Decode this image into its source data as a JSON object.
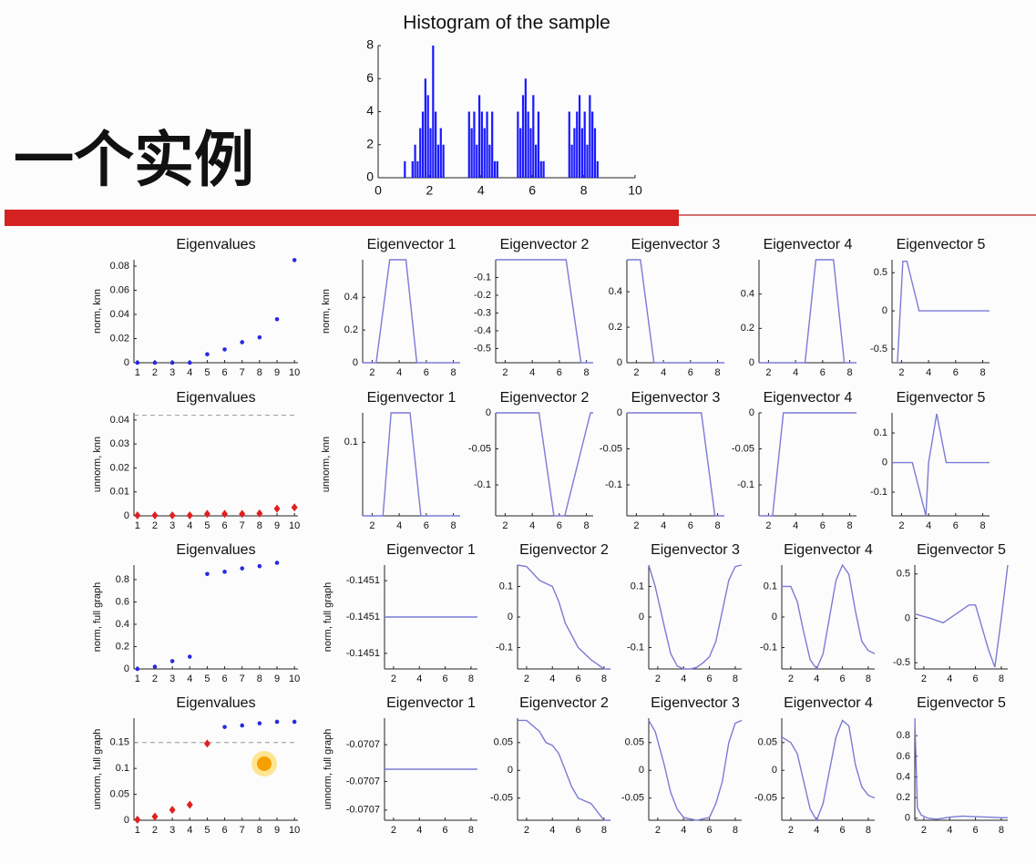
{
  "slide_title": "一个实例",
  "chart_data": [
    {
      "type": "histogram",
      "title": "Histogram of the sample",
      "color": "#1a1aff",
      "bins": [
        1,
        1.1,
        1.2,
        1.3,
        1.4,
        1.5,
        1.6,
        1.7,
        1.8,
        1.9,
        2,
        2.1,
        2.2,
        2.3,
        2.4,
        2.5,
        2.6,
        2.7,
        2.8,
        2.9,
        3,
        3.1,
        3.2,
        3.3,
        3.4,
        3.5,
        3.6,
        3.7,
        3.8,
        3.9,
        4,
        4.1,
        4.2,
        4.3,
        4.4,
        4.5,
        4.6,
        4.7,
        4.8,
        4.9,
        5,
        5.1,
        5.2,
        5.3,
        5.4,
        5.5,
        5.6,
        5.7,
        5.8,
        5.9,
        6,
        6.1,
        6.2,
        6.3,
        6.4,
        6.5,
        6.6,
        6.7,
        6.8,
        6.9,
        7,
        7.1,
        7.2,
        7.3,
        7.4,
        7.5,
        7.6,
        7.7,
        7.8,
        7.9,
        8,
        8.1,
        8.2,
        8.3,
        8.4,
        8.5,
        8.6,
        8.7,
        8.8,
        8.9,
        9
      ],
      "values": [
        1,
        0,
        0,
        1,
        2,
        1,
        3,
        4,
        6,
        5,
        3,
        8,
        4,
        2,
        3,
        2,
        0,
        0,
        0,
        0,
        0,
        0,
        0,
        0,
        0,
        4,
        3,
        4,
        2,
        5,
        4,
        3,
        4,
        2,
        4,
        1,
        1,
        0,
        0,
        0,
        0,
        0,
        0,
        0,
        4,
        3,
        5,
        6,
        4,
        3,
        5,
        2,
        4,
        1,
        1,
        0,
        0,
        0,
        0,
        0,
        0,
        0,
        0,
        0,
        4,
        2,
        3,
        4,
        5,
        3,
        4,
        2,
        5,
        4,
        3,
        1,
        0,
        0,
        0,
        0
      ],
      "xlim": [
        0,
        10
      ],
      "ylim": [
        0,
        8
      ],
      "xticks": [
        0,
        2,
        4,
        6,
        8,
        10
      ],
      "yticks": [
        0,
        2,
        4,
        6,
        8
      ]
    },
    {
      "type": "scatter",
      "title": "Eigenvalues",
      "ylabel": "norm, knn",
      "xlim": [
        0.8,
        10.2
      ],
      "ylim": [
        0,
        0.0853
      ],
      "xticks": [
        1,
        2,
        3,
        4,
        5,
        6,
        7,
        8,
        9,
        10
      ],
      "yticks": [
        0,
        0.02,
        0.04,
        0.06,
        0.08
      ],
      "series": [
        {
          "color": "#2a2ae0",
          "marker": "dot",
          "x": [
            1,
            2,
            3,
            4,
            5,
            6,
            7,
            8,
            9,
            10
          ],
          "values": [
            0,
            0,
            0,
            0,
            0.007,
            0.011,
            0.017,
            0.021,
            0.036,
            0.085
          ]
        }
      ]
    },
    {
      "type": "line",
      "title": "Eigenvector 1",
      "ylabel": "norm, knn",
      "color": "#7b7bd6",
      "xlim": [
        1.3,
        8.5
      ],
      "ylim": [
        0,
        0.63
      ],
      "xticks": [
        2,
        4,
        6,
        8
      ],
      "yticks": [
        0,
        0.2,
        0.4
      ],
      "x": [
        1.3,
        2.3,
        3.3,
        4.5,
        5.3,
        8.5
      ],
      "values": [
        0,
        0,
        0.63,
        0.63,
        0,
        0
      ]
    },
    {
      "type": "line",
      "title": "Eigenvector 2",
      "color": "#7b7bd6",
      "xlim": [
        1.3,
        8.5
      ],
      "ylim": [
        -0.58,
        0
      ],
      "xticks": [
        2,
        4,
        6,
        8
      ],
      "yticks": [
        -0.5,
        -0.4,
        -0.3,
        -0.2,
        -0.1
      ],
      "x": [
        1.3,
        6.5,
        7.6,
        8.5
      ],
      "values": [
        0,
        0,
        -0.58,
        -0.58
      ]
    },
    {
      "type": "line",
      "title": "Eigenvector 3",
      "color": "#7b7bd6",
      "xlim": [
        1.3,
        8.5
      ],
      "ylim": [
        0,
        0.58
      ],
      "xticks": [
        2,
        4,
        6,
        8
      ],
      "yticks": [
        0,
        0.2,
        0.4
      ],
      "x": [
        1.3,
        2.3,
        3.3,
        8.5
      ],
      "values": [
        0.58,
        0.58,
        0,
        0
      ]
    },
    {
      "type": "line",
      "title": "Eigenvector 4",
      "color": "#7b7bd6",
      "xlim": [
        1.3,
        8.5
      ],
      "ylim": [
        0,
        0.6
      ],
      "xticks": [
        2,
        4,
        6,
        8
      ],
      "yticks": [
        0,
        0.2,
        0.4
      ],
      "x": [
        1.3,
        4.7,
        5.5,
        6.8,
        7.6,
        8.5
      ],
      "values": [
        0,
        0,
        0.6,
        0.6,
        0,
        0
      ]
    },
    {
      "type": "line",
      "title": "Eigenvector 5",
      "color": "#7b7bd6",
      "xlim": [
        1.3,
        8.5
      ],
      "ylim": [
        -0.68,
        0.67
      ],
      "xticks": [
        2,
        4,
        6,
        8
      ],
      "yticks": [
        -0.5,
        0,
        0.5
      ],
      "x": [
        1.7,
        2.1,
        2.4,
        3.3,
        8.5
      ],
      "values": [
        -0.68,
        0.65,
        0.65,
        0,
        0
      ]
    },
    {
      "type": "scatter",
      "title": "Eigenvalues",
      "ylabel": "unnorm, knn",
      "xlim": [
        0.8,
        10.2
      ],
      "ylim": [
        0,
        0.043
      ],
      "xticks": [
        1,
        2,
        3,
        4,
        5,
        6,
        7,
        8,
        9,
        10
      ],
      "yticks": [
        0,
        0.01,
        0.02,
        0.03,
        0.04
      ],
      "reference_line": 0.042,
      "series": [
        {
          "color": "#e02020",
          "marker": "diamond",
          "x": [
            1,
            2,
            3,
            4,
            5,
            6,
            7,
            8,
            9,
            10
          ],
          "values": [
            0.0002,
            0.0002,
            0.0002,
            0.0002,
            0.0008,
            0.0008,
            0.0008,
            0.001,
            0.003,
            0.0035
          ]
        }
      ]
    },
    {
      "type": "line",
      "title": "Eigenvector 1",
      "ylabel": "unnorm, knn",
      "color": "#7b7bd6",
      "xlim": [
        1.3,
        8.5
      ],
      "ylim": [
        0,
        0.14
      ],
      "xticks": [
        2,
        4,
        6,
        8
      ],
      "yticks": [
        0.1
      ],
      "x": [
        1.3,
        2.8,
        3.4,
        4.8,
        5.6,
        8.5
      ],
      "values": [
        0,
        0,
        0.14,
        0.14,
        0,
        0
      ]
    },
    {
      "type": "line",
      "title": "Eigenvector 2",
      "color": "#7b7bd6",
      "xlim": [
        1.3,
        8.5
      ],
      "ylim": [
        -0.143,
        0
      ],
      "xticks": [
        2,
        4,
        6,
        8
      ],
      "yticks": [
        -0.1,
        -0.05,
        0
      ],
      "x": [
        1.3,
        4.5,
        5.6,
        6.4,
        8.3,
        8.5
      ],
      "values": [
        0,
        0,
        -0.143,
        -0.143,
        0,
        0
      ]
    },
    {
      "type": "line",
      "title": "Eigenvector 3",
      "color": "#7b7bd6",
      "xlim": [
        1.3,
        8.5
      ],
      "ylim": [
        -0.143,
        0
      ],
      "xticks": [
        2,
        4,
        6,
        8
      ],
      "yticks": [
        -0.1,
        -0.05,
        0
      ],
      "x": [
        1.3,
        6.8,
        7.8,
        8.5
      ],
      "values": [
        0,
        0,
        -0.143,
        -0.143
      ]
    },
    {
      "type": "line",
      "title": "Eigenvector 4",
      "color": "#7b7bd6",
      "xlim": [
        1.3,
        8.5
      ],
      "ylim": [
        -0.143,
        0
      ],
      "xticks": [
        2,
        4,
        6,
        8
      ],
      "yticks": [
        -0.1,
        -0.05,
        0
      ],
      "x": [
        1.3,
        2.3,
        3.1,
        8.5
      ],
      "values": [
        -0.143,
        -0.143,
        0,
        0
      ]
    },
    {
      "type": "line",
      "title": "Eigenvector 5",
      "color": "#7b7bd6",
      "xlim": [
        1.3,
        8.5
      ],
      "ylim": [
        -0.18,
        0.168
      ],
      "xticks": [
        2,
        4,
        6,
        8
      ],
      "yticks": [
        -0.1,
        0,
        0.1
      ],
      "x": [
        1.3,
        2.8,
        3.8,
        4.0,
        4.6,
        5.3,
        8.5
      ],
      "values": [
        0,
        0,
        -0.18,
        0,
        0.165,
        0,
        0
      ]
    },
    {
      "type": "scatter",
      "title": "Eigenvalues",
      "ylabel": "norm, full graph",
      "xlim": [
        0.8,
        10.2
      ],
      "ylim": [
        0,
        0.93
      ],
      "xticks": [
        1,
        2,
        3,
        4,
        5,
        6,
        7,
        8,
        9,
        10
      ],
      "yticks": [
        0,
        0.2,
        0.4,
        0.6,
        0.8
      ],
      "series": [
        {
          "color": "#2a2ae0",
          "marker": "dot",
          "x": [
            1,
            2,
            3,
            4,
            5,
            6,
            7,
            8,
            9
          ],
          "values": [
            0,
            0.02,
            0.07,
            0.11,
            0.85,
            0.87,
            0.9,
            0.92,
            0.95
          ]
        }
      ]
    },
    {
      "type": "line",
      "title": "Eigenvector 1",
      "ylabel": "norm, full graph",
      "color": "#7b7bd6",
      "xlim": [
        1.3,
        8.5
      ],
      "ylim": [
        -0.14512,
        -0.14508
      ],
      "xticks": [
        2,
        4,
        6,
        8
      ],
      "yticks": [
        {
          "value": -0.145114,
          "label": "-0.1451"
        },
        -0.1451,
        {
          "value": -0.145086,
          "label": "-0.1451"
        }
      ],
      "x": [
        1.3,
        8.5
      ],
      "values": [
        -0.1451,
        -0.1451
      ]
    },
    {
      "type": "line",
      "title": "Eigenvector 2",
      "color": "#7b7bd6",
      "xlim": [
        1.3,
        8.5
      ],
      "ylim": [
        -0.17,
        0.17
      ],
      "xticks": [
        2,
        4,
        6,
        8
      ],
      "yticks": [
        -0.1,
        0,
        0.1
      ],
      "x": [
        1.3,
        2,
        3,
        4,
        4.5,
        5,
        6,
        7,
        8,
        8.5
      ],
      "values": [
        0.17,
        0.165,
        0.12,
        0.1,
        0.05,
        -0.02,
        -0.1,
        -0.14,
        -0.17,
        -0.17
      ]
    },
    {
      "type": "line",
      "title": "Eigenvector 3",
      "color": "#7b7bd6",
      "xlim": [
        1.3,
        8.5
      ],
      "ylim": [
        -0.17,
        0.17
      ],
      "xticks": [
        2,
        4,
        6,
        8
      ],
      "yticks": [
        -0.1,
        0,
        0.1
      ],
      "x": [
        1.3,
        1.8,
        2.5,
        3,
        3.5,
        4,
        4.5,
        5,
        5.5,
        6,
        6.5,
        7,
        7.5,
        8,
        8.5
      ],
      "values": [
        0.17,
        0.1,
        -0.03,
        -0.12,
        -0.16,
        -0.17,
        -0.17,
        -0.165,
        -0.15,
        -0.13,
        -0.08,
        0.02,
        0.12,
        0.165,
        0.17
      ]
    },
    {
      "type": "line",
      "title": "Eigenvector 4",
      "color": "#7b7bd6",
      "xlim": [
        1.3,
        8.5
      ],
      "ylim": [
        -0.17,
        0.17
      ],
      "xticks": [
        2,
        4,
        6,
        8
      ],
      "yticks": [
        -0.1,
        0,
        0.1
      ],
      "x": [
        1.3,
        2,
        2.5,
        3,
        3.5,
        4,
        4.5,
        5,
        5.5,
        6,
        6.5,
        7,
        7.5,
        8,
        8.5
      ],
      "values": [
        0.1,
        0.1,
        0.05,
        -0.05,
        -0.14,
        -0.17,
        -0.12,
        0,
        0.12,
        0.17,
        0.14,
        0.02,
        -0.08,
        -0.11,
        -0.12
      ]
    },
    {
      "type": "line",
      "title": "Eigenvector 5",
      "color": "#7b7bd6",
      "xlim": [
        1.3,
        8.5
      ],
      "ylim": [
        -0.57,
        0.6
      ],
      "xticks": [
        2,
        4,
        6,
        8
      ],
      "yticks": [
        -0.5,
        0,
        0.5
      ],
      "x": [
        1.3,
        2.5,
        3.5,
        4.5,
        5.5,
        6,
        6.5,
        7,
        7.5,
        8,
        8.5
      ],
      "values": [
        0.05,
        0,
        -0.05,
        0.05,
        0.15,
        0.15,
        -0.1,
        -0.35,
        -0.55,
        0,
        0.6
      ]
    },
    {
      "type": "scatter",
      "title": "Eigenvalues",
      "ylabel": "unnorm, full graph",
      "xlim": [
        0.8,
        10.2
      ],
      "ylim": [
        0,
        0.197
      ],
      "xticks": [
        1,
        2,
        3,
        4,
        5,
        6,
        7,
        8,
        9,
        10
      ],
      "yticks": [
        0,
        0.05,
        0.1,
        0.15
      ],
      "reference_line": 0.15,
      "series": [
        {
          "color": "#e02020",
          "marker": "diamond",
          "x": [
            1,
            2,
            3,
            4,
            5
          ],
          "values": [
            0.001,
            0.007,
            0.02,
            0.03,
            0.148
          ]
        },
        {
          "color": "#2a2ae0",
          "marker": "dot",
          "x": [
            6,
            7,
            8,
            9,
            10
          ],
          "values": [
            0.18,
            0.183,
            0.187,
            0.19,
            0.19
          ]
        }
      ]
    },
    {
      "type": "line",
      "title": "Eigenvector 1",
      "ylabel": "unnorm, full graph",
      "color": "#7b7bd6",
      "xlim": [
        1.3,
        8.5
      ],
      "ylim": [
        -0.07072,
        -0.07068
      ],
      "xticks": [
        2,
        4,
        6,
        8
      ],
      "yticks": [
        {
          "value": -0.070716,
          "label": "-0.0707"
        },
        {
          "value": -0.0707048,
          "label": "-0.0707"
        },
        {
          "value": -0.0706904,
          "label": "-0.0707"
        }
      ],
      "x": [
        1.3,
        8.5
      ],
      "values": [
        -0.0707,
        -0.0707
      ]
    },
    {
      "type": "line",
      "title": "Eigenvector 2",
      "color": "#7b7bd6",
      "xlim": [
        1.3,
        8.5
      ],
      "ylim": [
        -0.09,
        0.094
      ],
      "xticks": [
        2,
        4,
        6,
        8
      ],
      "yticks": [
        -0.05,
        0,
        0.05
      ],
      "x": [
        1.3,
        2,
        3,
        3.5,
        4,
        4.5,
        5,
        5.5,
        6,
        7,
        8,
        8.5
      ],
      "values": [
        0.09,
        0.09,
        0.07,
        0.05,
        0.045,
        0.03,
        0,
        -0.03,
        -0.05,
        -0.06,
        -0.09,
        -0.09
      ]
    },
    {
      "type": "line",
      "title": "Eigenvector 3",
      "color": "#7b7bd6",
      "xlim": [
        1.3,
        8.5
      ],
      "ylim": [
        -0.09,
        0.094
      ],
      "xticks": [
        2,
        4,
        6,
        8
      ],
      "yticks": [
        -0.05,
        0,
        0.05
      ],
      "x": [
        1.3,
        1.8,
        2.5,
        3,
        3.5,
        4,
        5,
        6,
        6.5,
        7,
        7.5,
        8,
        8.5
      ],
      "values": [
        0.09,
        0.07,
        0.01,
        -0.04,
        -0.07,
        -0.085,
        -0.09,
        -0.085,
        -0.06,
        -0.02,
        0.05,
        0.085,
        0.09
      ]
    },
    {
      "type": "line",
      "title": "Eigenvector 4",
      "color": "#7b7bd6",
      "xlim": [
        1.3,
        8.5
      ],
      "ylim": [
        -0.09,
        0.094
      ],
      "xticks": [
        2,
        4,
        6,
        8
      ],
      "yticks": [
        -0.05,
        0,
        0.05
      ],
      "x": [
        1.3,
        2,
        2.5,
        3,
        3.5,
        4,
        4.5,
        5,
        5.5,
        6,
        6.5,
        7,
        7.5,
        8,
        8.5
      ],
      "values": [
        0.06,
        0.05,
        0.03,
        -0.02,
        -0.07,
        -0.09,
        -0.06,
        0,
        0.06,
        0.09,
        0.08,
        0.01,
        -0.03,
        -0.045,
        -0.05
      ]
    },
    {
      "type": "line",
      "title": "Eigenvector 5",
      "color": "#7b7bd6",
      "xlim": [
        1.3,
        8.5
      ],
      "ylim": [
        -0.02,
        0.97
      ],
      "xticks": [
        2,
        4,
        6,
        8
      ],
      "yticks": [
        0,
        0.2,
        0.4,
        0.6,
        0.8
      ],
      "x": [
        1.3,
        1.5,
        1.8,
        2.3,
        3,
        4,
        5,
        6,
        7,
        8,
        8.5
      ],
      "values": [
        0.97,
        0.1,
        0.03,
        0,
        -0.01,
        0.01,
        0.02,
        0.015,
        0.01,
        0.005,
        0.005
      ]
    }
  ]
}
